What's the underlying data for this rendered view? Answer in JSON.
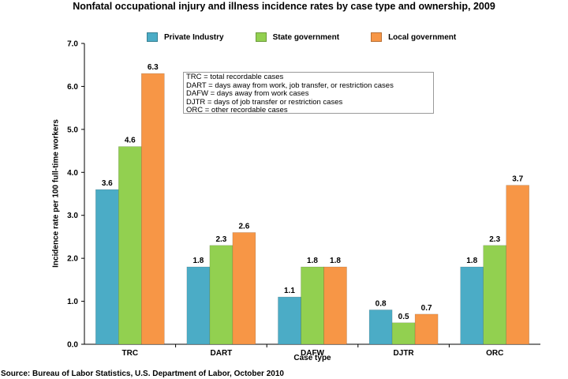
{
  "chart_data": {
    "type": "bar",
    "title": "Nonfatal occupational injury and illness incidence rates by case type and ownership, 2009",
    "xlabel": "Case type",
    "ylabel": "Incidence rate per 100 full-time workers",
    "categories": [
      "TRC",
      "DART",
      "DAFW",
      "DJTR",
      "ORC"
    ],
    "series": [
      {
        "name": "Private Industry",
        "color": "#4bacc6",
        "values": [
          3.6,
          1.8,
          1.1,
          0.8,
          1.8
        ],
        "labels": [
          "3.6",
          "1.8",
          "1.1",
          "0.8",
          "1.8"
        ]
      },
      {
        "name": "State government",
        "color": "#92d050",
        "values": [
          4.6,
          2.3,
          1.8,
          0.5,
          2.3
        ],
        "labels": [
          "4.6",
          "2.3",
          "1.8",
          "0.5",
          "2.3"
        ]
      },
      {
        "name": "Local government",
        "color": "#f79646",
        "values": [
          6.3,
          2.6,
          1.8,
          0.7,
          3.7
        ],
        "labels": [
          "6.3",
          "2.6",
          "1.8",
          "0.7",
          "3.7"
        ]
      }
    ],
    "ylim": [
      0,
      7.0
    ],
    "yticks": [
      "0.0",
      "1.0",
      "2.0",
      "3.0",
      "4.0",
      "5.0",
      "6.0",
      "7.0"
    ],
    "grid": false,
    "legend": "top",
    "annotation_lines": [
      "TRC = total recordable cases",
      "DART = days away from work, job transfer, or restriction cases",
      "DAFW = days away from work cases",
      "DJTR = days of job transfer or restriction cases",
      "ORC = other recordable cases"
    ]
  },
  "source": "Source:  Bureau of Labor Statistics, U.S. Department of Labor, October 2010"
}
